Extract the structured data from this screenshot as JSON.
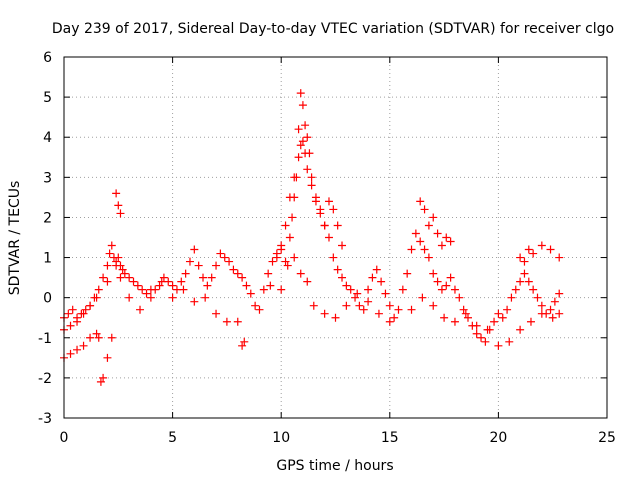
{
  "chart_data": {
    "type": "scatter",
    "title": "Day 239 of 2017, Sidereal Day-to-day VTEC variation (SDTVAR) for receiver clgo",
    "xlabel": "GPS time / hours",
    "ylabel": "SDTVAR / TECUs",
    "xlim": [
      0,
      25
    ],
    "ylim": [
      -3,
      6
    ],
    "xticks": [
      0,
      5,
      10,
      15,
      20,
      25
    ],
    "yticks": [
      -3,
      -2,
      -1,
      0,
      1,
      2,
      3,
      4,
      5,
      6
    ],
    "grid": true,
    "marker": "+",
    "color": "#ff0000",
    "series": [
      {
        "name": "SDTVAR",
        "x": [
          0.0,
          0.2,
          0.4,
          0.6,
          0.8,
          1.0,
          1.2,
          1.4,
          1.6,
          1.8,
          2.0,
          2.1,
          2.2,
          2.3,
          2.4,
          2.5,
          2.6,
          2.7,
          2.8,
          3.0,
          3.2,
          3.4,
          3.6,
          3.8,
          4.0,
          4.2,
          4.4,
          4.6,
          4.8,
          5.0,
          5.2,
          5.4,
          5.6,
          5.8,
          6.0,
          6.2,
          6.4,
          6.6,
          6.8,
          7.0,
          7.2,
          7.4,
          7.6,
          7.8,
          8.0,
          8.2,
          8.4,
          8.6,
          8.8,
          9.0,
          9.2,
          9.4,
          9.6,
          9.8,
          10.0,
          10.2,
          10.4,
          10.6,
          10.8,
          10.9,
          11.0,
          11.1,
          11.2,
          11.4,
          11.6,
          11.8,
          12.0,
          12.2,
          12.4,
          12.6,
          12.8,
          13.0,
          13.2,
          13.4,
          13.6,
          13.8,
          14.0,
          14.2,
          14.4,
          14.6,
          14.8,
          15.0,
          15.2,
          15.4,
          15.6,
          15.8,
          16.0,
          16.2,
          16.4,
          16.6,
          16.8,
          17.0,
          17.2,
          17.4,
          17.6,
          17.8,
          18.0,
          18.2,
          18.4,
          18.6,
          18.8,
          19.0,
          19.2,
          19.4,
          19.6,
          19.8,
          20.0,
          20.2,
          20.4,
          20.6,
          20.8,
          21.0,
          21.2,
          21.4,
          21.6,
          21.8,
          22.0,
          22.2,
          22.4,
          22.6,
          22.8,
          0.0,
          0.3,
          0.6,
          0.9,
          1.2,
          1.5,
          2.0,
          2.4,
          2.6,
          3.0,
          3.5,
          4.0,
          4.5,
          5.0,
          5.5,
          6.0,
          6.5,
          7.0,
          7.5,
          8.0,
          9.5,
          10.0,
          10.3,
          10.6,
          10.9,
          11.2,
          11.5,
          12.0,
          12.5,
          13.0,
          13.5,
          14.0,
          14.5,
          15.0,
          16.0,
          16.5,
          17.0,
          17.5,
          18.0,
          18.5,
          19.0,
          19.5,
          20.0,
          20.5,
          21.0,
          21.5,
          22.0,
          22.5,
          22.8,
          0.0,
          0.3,
          0.6,
          0.9,
          1.2,
          1.5,
          1.6,
          1.7,
          1.8,
          2.0,
          2.2,
          8.2,
          8.3,
          2.4,
          2.5,
          2.6,
          9.8,
          10.0,
          10.2,
          10.4,
          10.5,
          10.6,
          10.7,
          10.8,
          10.9,
          11.0,
          11.1,
          11.2,
          11.3,
          11.4,
          11.6,
          11.8,
          12.0,
          12.2,
          12.4,
          12.6,
          12.8,
          16.4,
          16.6,
          16.8,
          17.0,
          17.2,
          17.4,
          17.6,
          17.8,
          21.0,
          21.2,
          21.4,
          21.6,
          22.0,
          22.4,
          22.8
        ],
        "y": [
          -0.5,
          -0.4,
          -0.3,
          -0.5,
          -0.4,
          -0.3,
          -0.2,
          0.0,
          0.2,
          0.5,
          0.8,
          1.1,
          1.3,
          1.0,
          0.9,
          1.0,
          0.8,
          0.7,
          0.6,
          0.5,
          0.4,
          0.3,
          0.2,
          0.1,
          0.0,
          0.2,
          0.3,
          0.5,
          0.4,
          0.3,
          0.2,
          0.4,
          0.6,
          0.9,
          1.2,
          0.8,
          0.5,
          0.3,
          0.5,
          0.8,
          1.1,
          1.0,
          0.9,
          0.7,
          0.6,
          0.5,
          0.3,
          0.1,
          -0.2,
          -0.3,
          0.2,
          0.6,
          0.9,
          1.1,
          1.3,
          1.8,
          2.5,
          3.0,
          3.5,
          3.8,
          3.9,
          3.6,
          3.2,
          2.8,
          2.4,
          2.1,
          1.8,
          1.5,
          1.0,
          0.7,
          0.5,
          0.3,
          0.2,
          0.0,
          -0.2,
          -0.3,
          0.2,
          0.5,
          0.7,
          0.4,
          0.1,
          -0.2,
          -0.5,
          -0.3,
          0.2,
          0.6,
          1.2,
          1.6,
          1.4,
          1.2,
          1.0,
          0.6,
          0.4,
          0.2,
          0.3,
          0.5,
          0.2,
          0.0,
          -0.3,
          -0.5,
          -0.7,
          -0.9,
          -1.0,
          -1.1,
          -0.8,
          -0.6,
          -0.4,
          -0.5,
          -0.3,
          0.0,
          0.2,
          0.4,
          0.6,
          0.4,
          0.2,
          0.0,
          -0.2,
          -0.4,
          -0.3,
          -0.1,
          0.1,
          -0.8,
          -0.7,
          -0.6,
          -0.4,
          -0.2,
          0.0,
          0.4,
          0.8,
          0.5,
          0.0,
          -0.3,
          0.2,
          0.4,
          0.0,
          0.2,
          -0.1,
          0.0,
          -0.4,
          -0.6,
          -0.6,
          0.3,
          0.2,
          0.8,
          1.0,
          0.6,
          0.4,
          -0.2,
          -0.4,
          -0.5,
          -0.2,
          0.1,
          -0.1,
          -0.4,
          -0.6,
          -0.3,
          0.0,
          -0.2,
          -0.5,
          -0.6,
          -0.4,
          -0.7,
          -0.8,
          -1.2,
          -1.1,
          -0.8,
          -0.6,
          -0.4,
          -0.5,
          -0.4,
          -1.5,
          -1.4,
          -1.3,
          -1.2,
          -1.0,
          -0.9,
          -1.0,
          -2.1,
          -2.0,
          -1.5,
          -1.0,
          -1.2,
          -1.1,
          2.6,
          2.3,
          2.1,
          1.0,
          1.2,
          0.9,
          1.5,
          2.0,
          2.5,
          3.0,
          4.2,
          5.1,
          4.8,
          4.3,
          4.0,
          3.6,
          3.0,
          2.5,
          2.2,
          1.8,
          2.4,
          2.2,
          1.8,
          1.3,
          2.4,
          2.2,
          1.8,
          2.0,
          1.6,
          1.3,
          1.5,
          1.4,
          1.0,
          0.9,
          1.2,
          1.1,
          1.3,
          1.2,
          1.0
        ]
      }
    ]
  }
}
